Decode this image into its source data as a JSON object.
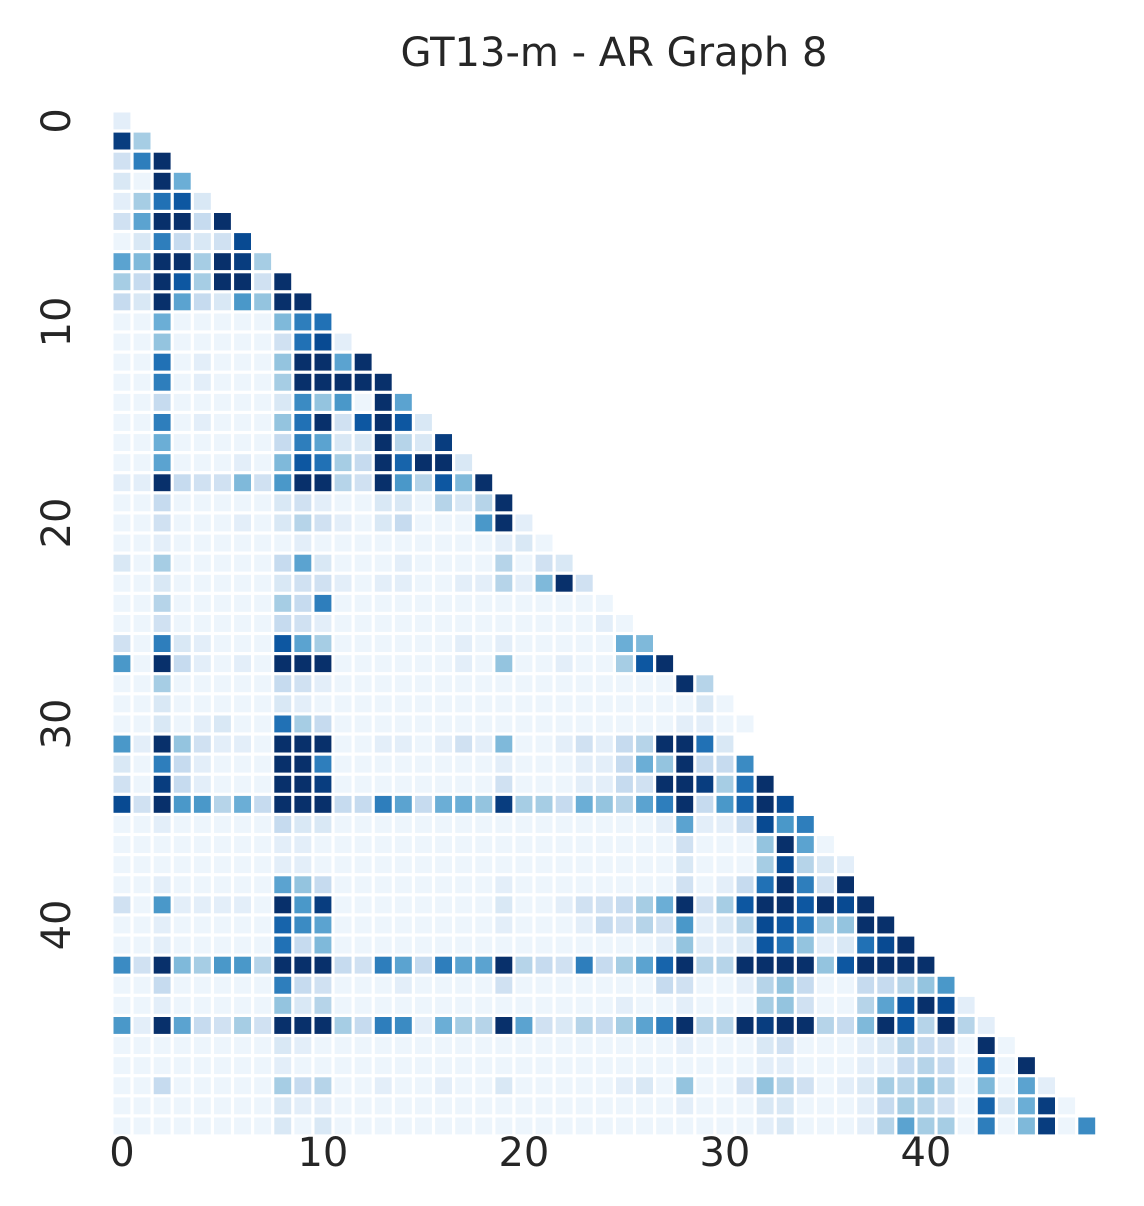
{
  "chart_data": {
    "type": "heatmap",
    "title": "GT13-m - AR Graph 8",
    "xlabel": "",
    "ylabel": "",
    "size": 49,
    "lower_triangular": true,
    "colormap": "Blues",
    "grid": false,
    "x_ticks": [
      0,
      10,
      20,
      30,
      40
    ],
    "y_ticks": [
      0,
      10,
      20,
      30,
      40
    ],
    "colors": {
      "background": "#ffffff",
      "text": "#262626",
      "cmap_low": "#f7fbff",
      "cmap_high": "#08306b"
    },
    "value_range": [
      0,
      1
    ],
    "rows": [
      [
        0.1
      ],
      [
        0.95,
        0.35
      ],
      [
        0.2,
        0.7,
        1.0
      ],
      [
        0.15,
        0.05,
        1.0,
        0.5
      ],
      [
        0.1,
        0.35,
        0.75,
        0.85,
        0.15
      ],
      [
        0.2,
        0.55,
        1.0,
        1.0,
        0.25,
        1.0
      ],
      [
        0.05,
        0.15,
        0.7,
        0.25,
        0.15,
        0.2,
        0.9
      ],
      [
        0.55,
        0.45,
        1.0,
        1.0,
        0.35,
        1.0,
        0.95,
        0.35
      ],
      [
        0.35,
        0.25,
        1.0,
        0.85,
        0.35,
        1.0,
        1.0,
        0.2,
        1.0
      ],
      [
        0.25,
        0.15,
        1.0,
        0.55,
        0.25,
        0.15,
        0.6,
        0.4,
        1.0,
        1.0
      ],
      [
        0.05,
        0.05,
        0.5,
        0.05,
        0.05,
        0.05,
        0.05,
        0.05,
        0.45,
        0.7,
        0.75
      ],
      [
        0.05,
        0.05,
        0.4,
        0.05,
        0.05,
        0.05,
        0.05,
        0.05,
        0.2,
        0.75,
        0.9,
        0.1
      ],
      [
        0.05,
        0.05,
        0.75,
        0.05,
        0.1,
        0.05,
        0.05,
        0.05,
        0.4,
        1.0,
        1.0,
        0.55,
        1.0
      ],
      [
        0.05,
        0.05,
        0.7,
        0.05,
        0.1,
        0.05,
        0.05,
        0.05,
        0.35,
        1.0,
        1.0,
        1.0,
        1.0,
        1.0
      ],
      [
        0.05,
        0.05,
        0.25,
        0.05,
        0.05,
        0.05,
        0.05,
        0.05,
        0.15,
        0.65,
        0.4,
        0.6,
        0.05,
        1.0,
        0.55
      ],
      [
        0.05,
        0.05,
        0.7,
        0.05,
        0.1,
        0.05,
        0.05,
        0.05,
        0.4,
        0.75,
        1.0,
        0.2,
        0.85,
        1.0,
        0.85,
        0.15
      ],
      [
        0.05,
        0.05,
        0.5,
        0.05,
        0.05,
        0.05,
        0.05,
        0.05,
        0.25,
        0.7,
        0.55,
        0.15,
        0.15,
        1.0,
        0.3,
        0.15,
        0.95
      ],
      [
        0.05,
        0.05,
        0.55,
        0.05,
        0.05,
        0.05,
        0.1,
        0.05,
        0.45,
        0.85,
        0.75,
        0.35,
        0.25,
        1.0,
        0.8,
        1.0,
        1.0,
        0.15
      ],
      [
        0.1,
        0.1,
        1.0,
        0.25,
        0.2,
        0.2,
        0.45,
        0.2,
        0.6,
        1.0,
        1.0,
        0.3,
        0.2,
        1.0,
        0.6,
        0.3,
        0.85,
        0.45,
        1.0
      ],
      [
        0.05,
        0.05,
        0.25,
        0.05,
        0.05,
        0.05,
        0.05,
        0.05,
        0.15,
        0.2,
        0.1,
        0.05,
        0.05,
        0.15,
        0.15,
        0.05,
        0.3,
        0.15,
        0.3,
        1.0
      ],
      [
        0.05,
        0.05,
        0.2,
        0.05,
        0.05,
        0.05,
        0.1,
        0.05,
        0.15,
        0.3,
        0.2,
        0.1,
        0.05,
        0.15,
        0.25,
        0.05,
        0.05,
        0.05,
        0.6,
        1.0,
        0.1
      ],
      [
        0.05,
        0.05,
        0.1,
        0.05,
        0.05,
        0.05,
        0.05,
        0.05,
        0.05,
        0.1,
        0.05,
        0.05,
        0.05,
        0.05,
        0.05,
        0.05,
        0.05,
        0.05,
        0.05,
        0.1,
        0.15,
        0.05
      ],
      [
        0.15,
        0.05,
        0.35,
        0.05,
        0.05,
        0.05,
        0.05,
        0.05,
        0.25,
        0.55,
        0.15,
        0.05,
        0.05,
        0.05,
        0.1,
        0.05,
        0.05,
        0.05,
        0.05,
        0.3,
        0.05,
        0.2,
        0.15
      ],
      [
        0.05,
        0.05,
        0.15,
        0.05,
        0.05,
        0.05,
        0.05,
        0.05,
        0.15,
        0.2,
        0.2,
        0.1,
        0.05,
        0.1,
        0.1,
        0.05,
        0.05,
        0.1,
        0.1,
        0.3,
        0.1,
        0.45,
        1.0,
        0.2
      ],
      [
        0.05,
        0.05,
        0.3,
        0.05,
        0.05,
        0.05,
        0.05,
        0.05,
        0.35,
        0.25,
        0.7,
        0.05,
        0.05,
        0.05,
        0.05,
        0.05,
        0.05,
        0.05,
        0.05,
        0.05,
        0.05,
        0.05,
        0.05,
        0.05,
        0.05
      ],
      [
        0.05,
        0.05,
        0.2,
        0.05,
        0.05,
        0.05,
        0.05,
        0.05,
        0.25,
        0.2,
        0.1,
        0.05,
        0.05,
        0.05,
        0.05,
        0.05,
        0.05,
        0.05,
        0.05,
        0.05,
        0.05,
        0.05,
        0.05,
        0.05,
        0.1,
        0.05
      ],
      [
        0.2,
        0.05,
        0.7,
        0.15,
        0.1,
        0.05,
        0.05,
        0.05,
        0.85,
        0.55,
        0.35,
        0.05,
        0.05,
        0.05,
        0.05,
        0.05,
        0.05,
        0.1,
        0.05,
        0.1,
        0.05,
        0.05,
        0.05,
        0.05,
        0.05,
        0.5,
        0.45
      ],
      [
        0.6,
        0.05,
        1.0,
        0.25,
        0.1,
        0.05,
        0.1,
        0.05,
        1.0,
        1.0,
        1.0,
        0.05,
        0.05,
        0.05,
        0.05,
        0.05,
        0.05,
        0.1,
        0.05,
        0.4,
        0.05,
        0.05,
        0.1,
        0.05,
        0.05,
        0.35,
        0.85,
        1.0
      ],
      [
        0.05,
        0.05,
        0.35,
        0.05,
        0.05,
        0.05,
        0.05,
        0.05,
        0.25,
        0.2,
        0.1,
        0.05,
        0.05,
        0.05,
        0.05,
        0.05,
        0.05,
        0.05,
        0.05,
        0.05,
        0.05,
        0.05,
        0.05,
        0.05,
        0.05,
        0.05,
        0.05,
        0.05,
        1.0,
        0.3
      ],
      [
        0.05,
        0.05,
        0.15,
        0.05,
        0.05,
        0.05,
        0.05,
        0.05,
        0.15,
        0.1,
        0.05,
        0.05,
        0.05,
        0.05,
        0.05,
        0.05,
        0.05,
        0.05,
        0.05,
        0.05,
        0.05,
        0.05,
        0.05,
        0.05,
        0.05,
        0.05,
        0.05,
        0.05,
        0.05,
        0.15,
        0.05
      ],
      [
        0.05,
        0.05,
        0.15,
        0.05,
        0.1,
        0.15,
        0.05,
        0.05,
        0.75,
        0.35,
        0.25,
        0.05,
        0.05,
        0.05,
        0.05,
        0.05,
        0.05,
        0.05,
        0.05,
        0.05,
        0.05,
        0.05,
        0.05,
        0.05,
        0.05,
        0.05,
        0.05,
        0.05,
        0.1,
        0.1,
        0.05,
        0.05
      ],
      [
        0.6,
        0.1,
        1.0,
        0.4,
        0.2,
        0.1,
        0.1,
        0.05,
        1.0,
        1.0,
        1.0,
        0.05,
        0.05,
        0.1,
        0.1,
        0.05,
        0.1,
        0.2,
        0.1,
        0.45,
        0.05,
        0.05,
        0.1,
        0.2,
        0.1,
        0.25,
        0.3,
        1.0,
        1.0,
        0.75,
        0.15
      ],
      [
        0.15,
        0.05,
        0.7,
        0.25,
        0.1,
        0.05,
        0.05,
        0.05,
        1.0,
        1.0,
        0.7,
        0.05,
        0.05,
        0.05,
        0.05,
        0.05,
        0.05,
        0.05,
        0.05,
        0.1,
        0.05,
        0.05,
        0.05,
        0.1,
        0.1,
        0.25,
        0.5,
        0.4,
        1.0,
        0.25,
        0.25,
        0.65
      ],
      [
        0.2,
        0.05,
        0.95,
        0.25,
        0.1,
        0.05,
        0.05,
        0.05,
        1.0,
        1.0,
        0.95,
        0.05,
        0.05,
        0.05,
        0.05,
        0.05,
        0.05,
        0.05,
        0.05,
        0.2,
        0.05,
        0.05,
        0.05,
        0.1,
        0.1,
        0.25,
        0.2,
        1.0,
        1.0,
        0.95,
        0.35,
        0.75,
        1.0
      ],
      [
        0.9,
        0.2,
        1.0,
        0.6,
        0.6,
        0.3,
        0.5,
        0.25,
        1.0,
        1.0,
        1.0,
        0.25,
        0.25,
        0.7,
        0.55,
        0.25,
        0.5,
        0.5,
        0.4,
        0.95,
        0.35,
        0.35,
        0.25,
        0.5,
        0.4,
        0.3,
        0.55,
        0.7,
        1.0,
        0.25,
        0.6,
        0.8,
        1.0,
        0.9
      ],
      [
        0.05,
        0.05,
        0.1,
        0.05,
        0.05,
        0.05,
        0.05,
        0.05,
        0.25,
        0.15,
        0.15,
        0.05,
        0.05,
        0.05,
        0.05,
        0.05,
        0.05,
        0.05,
        0.05,
        0.05,
        0.05,
        0.05,
        0.05,
        0.05,
        0.05,
        0.05,
        0.05,
        0.1,
        0.55,
        0.1,
        0.1,
        0.25,
        0.9,
        0.6,
        0.7
      ],
      [
        0.05,
        0.05,
        0.05,
        0.05,
        0.05,
        0.05,
        0.05,
        0.05,
        0.1,
        0.1,
        0.05,
        0.05,
        0.05,
        0.05,
        0.05,
        0.05,
        0.05,
        0.05,
        0.05,
        0.05,
        0.05,
        0.05,
        0.05,
        0.05,
        0.05,
        0.05,
        0.05,
        0.05,
        0.2,
        0.05,
        0.05,
        0.05,
        0.4,
        1.0,
        0.55,
        0.05
      ],
      [
        0.05,
        0.05,
        0.05,
        0.05,
        0.05,
        0.05,
        0.05,
        0.05,
        0.1,
        0.1,
        0.05,
        0.05,
        0.05,
        0.05,
        0.05,
        0.05,
        0.05,
        0.05,
        0.05,
        0.05,
        0.05,
        0.05,
        0.05,
        0.05,
        0.05,
        0.05,
        0.05,
        0.05,
        0.15,
        0.05,
        0.05,
        0.05,
        0.35,
        0.9,
        0.3,
        0.15,
        0.1
      ],
      [
        0.05,
        0.05,
        0.1,
        0.05,
        0.05,
        0.05,
        0.05,
        0.05,
        0.55,
        0.4,
        0.25,
        0.05,
        0.05,
        0.05,
        0.05,
        0.05,
        0.05,
        0.05,
        0.05,
        0.1,
        0.05,
        0.05,
        0.05,
        0.05,
        0.05,
        0.05,
        0.05,
        0.05,
        0.2,
        0.05,
        0.1,
        0.25,
        0.75,
        1.0,
        0.7,
        0.2,
        1.0
      ],
      [
        0.2,
        0.05,
        0.6,
        0.1,
        0.1,
        0.1,
        0.1,
        0.05,
        1.0,
        0.6,
        0.95,
        0.05,
        0.05,
        0.05,
        0.05,
        0.05,
        0.05,
        0.05,
        0.05,
        0.15,
        0.05,
        0.05,
        0.1,
        0.2,
        0.2,
        0.25,
        0.35,
        0.5,
        1.0,
        0.2,
        0.35,
        0.85,
        1.0,
        1.0,
        0.85,
        1.0,
        0.9,
        1.0
      ],
      [
        0.05,
        0.05,
        0.1,
        0.05,
        0.05,
        0.05,
        0.05,
        0.05,
        0.8,
        0.65,
        0.55,
        0.05,
        0.05,
        0.05,
        0.05,
        0.05,
        0.05,
        0.05,
        0.05,
        0.1,
        0.05,
        0.05,
        0.05,
        0.1,
        0.25,
        0.2,
        0.3,
        0.2,
        0.6,
        0.1,
        0.15,
        0.3,
        0.9,
        0.85,
        0.75,
        0.35,
        0.4,
        1.0,
        1.0
      ],
      [
        0.05,
        0.05,
        0.1,
        0.05,
        0.05,
        0.05,
        0.05,
        0.05,
        0.75,
        0.25,
        0.45,
        0.05,
        0.05,
        0.05,
        0.05,
        0.05,
        0.05,
        0.05,
        0.05,
        0.05,
        0.05,
        0.05,
        0.05,
        0.05,
        0.05,
        0.05,
        0.05,
        0.1,
        0.4,
        0.1,
        0.1,
        0.15,
        0.85,
        0.75,
        0.4,
        0.1,
        0.15,
        0.75,
        0.9,
        1.0
      ],
      [
        0.65,
        0.2,
        1.0,
        0.45,
        0.35,
        0.6,
        0.6,
        0.3,
        1.0,
        1.0,
        1.0,
        0.25,
        0.2,
        0.7,
        0.55,
        0.25,
        0.7,
        0.55,
        0.55,
        1.0,
        0.3,
        0.25,
        0.2,
        0.7,
        0.25,
        0.35,
        0.55,
        0.8,
        1.0,
        0.3,
        0.3,
        1.0,
        1.0,
        1.0,
        1.0,
        0.4,
        0.85,
        1.0,
        1.0,
        1.0,
        1.0
      ],
      [
        0.05,
        0.05,
        0.25,
        0.05,
        0.05,
        0.05,
        0.05,
        0.05,
        0.7,
        0.25,
        0.2,
        0.05,
        0.05,
        0.05,
        0.1,
        0.05,
        0.05,
        0.05,
        0.05,
        0.2,
        0.05,
        0.05,
        0.05,
        0.05,
        0.05,
        0.05,
        0.05,
        0.25,
        0.2,
        0.05,
        0.05,
        0.1,
        0.3,
        0.4,
        0.25,
        0.05,
        0.05,
        0.25,
        0.25,
        0.3,
        0.4,
        0.6
      ],
      [
        0.05,
        0.05,
        0.1,
        0.05,
        0.05,
        0.05,
        0.05,
        0.05,
        0.4,
        0.15,
        0.3,
        0.05,
        0.05,
        0.05,
        0.05,
        0.05,
        0.05,
        0.05,
        0.05,
        0.05,
        0.05,
        0.05,
        0.05,
        0.05,
        0.05,
        0.1,
        0.05,
        0.05,
        0.1,
        0.05,
        0.05,
        0.05,
        0.35,
        0.4,
        0.2,
        0.05,
        0.05,
        0.3,
        0.55,
        0.85,
        1.0,
        0.9,
        0.1
      ],
      [
        0.6,
        0.1,
        1.0,
        0.55,
        0.25,
        0.2,
        0.35,
        0.2,
        1.0,
        1.0,
        1.0,
        0.35,
        0.25,
        0.7,
        0.65,
        0.1,
        0.5,
        0.35,
        0.3,
        1.0,
        0.55,
        0.2,
        0.15,
        0.3,
        0.25,
        0.35,
        0.55,
        0.7,
        1.0,
        0.3,
        0.3,
        1.0,
        0.95,
        1.0,
        1.0,
        0.3,
        0.25,
        0.45,
        1.0,
        0.85,
        0.3,
        1.0,
        0.3,
        0.1
      ],
      [
        0.05,
        0.05,
        0.05,
        0.05,
        0.05,
        0.05,
        0.05,
        0.05,
        0.15,
        0.1,
        0.05,
        0.05,
        0.05,
        0.05,
        0.05,
        0.05,
        0.05,
        0.05,
        0.05,
        0.05,
        0.05,
        0.05,
        0.05,
        0.05,
        0.05,
        0.05,
        0.05,
        0.05,
        0.1,
        0.05,
        0.05,
        0.05,
        0.15,
        0.2,
        0.05,
        0.05,
        0.05,
        0.1,
        0.15,
        0.3,
        0.25,
        0.2,
        0.05,
        1.0,
        0.05
      ],
      [
        0.05,
        0.05,
        0.05,
        0.05,
        0.05,
        0.05,
        0.05,
        0.05,
        0.1,
        0.05,
        0.05,
        0.05,
        0.05,
        0.05,
        0.05,
        0.05,
        0.05,
        0.05,
        0.05,
        0.05,
        0.05,
        0.05,
        0.05,
        0.05,
        0.05,
        0.05,
        0.05,
        0.05,
        0.05,
        0.05,
        0.05,
        0.05,
        0.1,
        0.1,
        0.05,
        0.05,
        0.05,
        0.1,
        0.1,
        0.25,
        0.3,
        0.25,
        0.05,
        0.75,
        0.05,
        1.0
      ],
      [
        0.05,
        0.05,
        0.25,
        0.05,
        0.05,
        0.05,
        0.05,
        0.05,
        0.35,
        0.25,
        0.3,
        0.05,
        0.05,
        0.1,
        0.05,
        0.05,
        0.1,
        0.05,
        0.05,
        0.15,
        0.05,
        0.05,
        0.05,
        0.05,
        0.05,
        0.1,
        0.15,
        0.05,
        0.4,
        0.05,
        0.05,
        0.2,
        0.4,
        0.3,
        0.2,
        0.05,
        0.1,
        0.15,
        0.35,
        0.3,
        0.4,
        0.3,
        0.05,
        0.45,
        0.05,
        0.55,
        0.1
      ],
      [
        0.05,
        0.05,
        0.05,
        0.05,
        0.05,
        0.05,
        0.05,
        0.05,
        0.15,
        0.1,
        0.1,
        0.05,
        0.05,
        0.05,
        0.05,
        0.05,
        0.05,
        0.05,
        0.05,
        0.05,
        0.05,
        0.05,
        0.05,
        0.05,
        0.05,
        0.05,
        0.05,
        0.05,
        0.1,
        0.05,
        0.05,
        0.05,
        0.15,
        0.15,
        0.05,
        0.05,
        0.05,
        0.1,
        0.25,
        0.35,
        0.3,
        0.2,
        0.05,
        0.8,
        0.15,
        0.5,
        0.95,
        0.05
      ],
      [
        0.05,
        0.05,
        0.05,
        0.05,
        0.05,
        0.05,
        0.05,
        0.05,
        0.15,
        0.05,
        0.15,
        0.05,
        0.05,
        0.05,
        0.05,
        0.05,
        0.05,
        0.05,
        0.05,
        0.05,
        0.05,
        0.05,
        0.05,
        0.05,
        0.05,
        0.05,
        0.05,
        0.05,
        0.05,
        0.05,
        0.05,
        0.05,
        0.1,
        0.15,
        0.05,
        0.05,
        0.05,
        0.1,
        0.3,
        0.55,
        0.35,
        0.35,
        0.05,
        0.7,
        0.05,
        0.45,
        0.95,
        0.05,
        0.65
      ]
    ]
  }
}
